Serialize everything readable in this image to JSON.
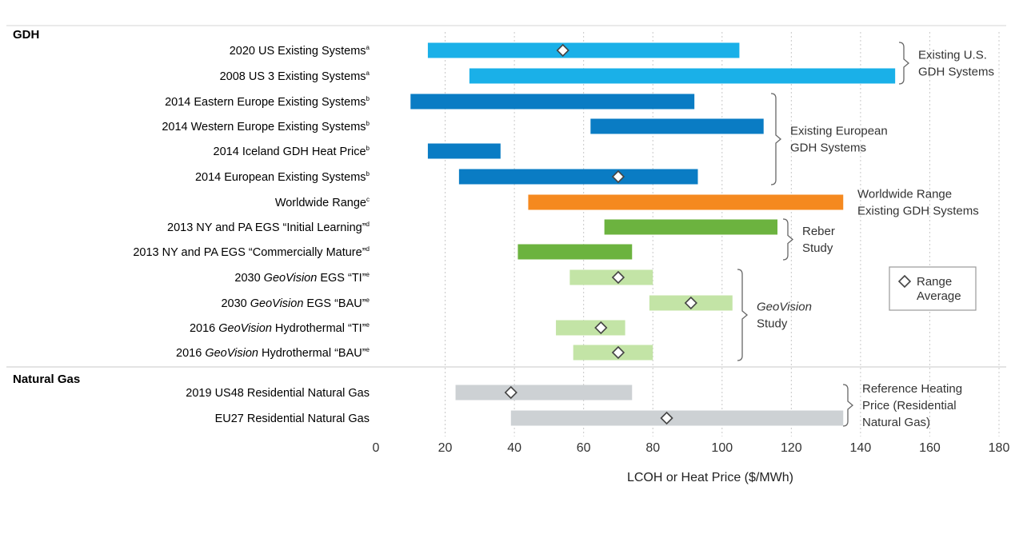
{
  "chart_data": {
    "type": "bar",
    "orientation": "horizontal-range",
    "title": "",
    "xlabel": "LCOH or Heat Price ($/MWh)",
    "xlim": [
      0,
      180
    ],
    "xticks": [
      0,
      20,
      40,
      60,
      80,
      100,
      120,
      140,
      160,
      180
    ],
    "sections": [
      {
        "id": "gdh",
        "title": "GDH"
      },
      {
        "id": "ng",
        "title": "Natural Gas"
      }
    ],
    "rows": [
      {
        "label": "2020 US Existing Systems",
        "sup": "a",
        "low": 15,
        "high": 105,
        "avg": 54,
        "color": "#1ab0e8",
        "section": "gdh"
      },
      {
        "label": "2008 US 3 Existing Systems",
        "sup": "a",
        "low": 27,
        "high": 150,
        "avg": null,
        "color": "#1ab0e8",
        "section": "gdh"
      },
      {
        "label": "2014 Eastern Europe Existing Systems",
        "sup": "b",
        "low": 10,
        "high": 92,
        "avg": null,
        "color": "#0a7cc4",
        "section": "gdh"
      },
      {
        "label": "2014 Western Europe Existing Systems",
        "sup": "b",
        "low": 62,
        "high": 112,
        "avg": null,
        "color": "#0a7cc4",
        "section": "gdh"
      },
      {
        "label": "2014 Iceland GDH Heat Price",
        "sup": "b",
        "low": 15,
        "high": 36,
        "avg": null,
        "color": "#0a7cc4",
        "section": "gdh"
      },
      {
        "label": "2014 European Existing Systems",
        "sup": "b",
        "low": 24,
        "high": 93,
        "avg": 70,
        "color": "#0a7cc4",
        "section": "gdh"
      },
      {
        "label": "Worldwide Range",
        "sup": "c",
        "low": 44,
        "high": 135,
        "avg": null,
        "color": "#f5891f",
        "section": "gdh"
      },
      {
        "label": "2013 NY and PA EGS “Initial Learning”",
        "sup": "d",
        "low": 66,
        "high": 116,
        "avg": null,
        "color": "#6cb33f",
        "section": "gdh"
      },
      {
        "label": "2013 NY and PA EGS “Commercially Mature”",
        "sup": "d",
        "low": 41,
        "high": 74,
        "avg": null,
        "color": "#6cb33f",
        "section": "gdh"
      },
      {
        "label_pre": "2030 ",
        "label_em": "GeoVision",
        "label_post": " EGS “TI”",
        "sup": "e",
        "low": 56,
        "high": 80,
        "avg": 70,
        "color": "#c3e4a6",
        "section": "gdh"
      },
      {
        "label_pre": "2030 ",
        "label_em": "GeoVision",
        "label_post": " EGS “BAU”",
        "sup": "e",
        "low": 79,
        "high": 103,
        "avg": 91,
        "color": "#c3e4a6",
        "section": "gdh"
      },
      {
        "label_pre": "2016 ",
        "label_em": "GeoVision",
        "label_post": " Hydrothermal “TI”",
        "sup": "e",
        "low": 52,
        "high": 72,
        "avg": 65,
        "color": "#c3e4a6",
        "section": "gdh"
      },
      {
        "label_pre": "2016 ",
        "label_em": "GeoVision",
        "label_post": " Hydrothermal “BAU”",
        "sup": "e",
        "low": 57,
        "high": 80,
        "avg": 70,
        "color": "#c3e4a6",
        "section": "gdh"
      },
      {
        "label": "2019 US48 Residential Natural Gas",
        "sup": "",
        "low": 23,
        "high": 74,
        "avg": 39,
        "color": "#cdd1d4",
        "section": "ng"
      },
      {
        "label": "EU27 Residential Natural Gas",
        "sup": "",
        "low": 39,
        "high": 135,
        "avg": 84,
        "color": "#cdd1d4",
        "section": "ng"
      }
    ],
    "groups": [
      {
        "lines": [
          "Existing U.S.",
          "GDH Systems"
        ],
        "first_row": 0,
        "last_row": 1,
        "bracket": true
      },
      {
        "lines": [
          "Existing European",
          "GDH Systems"
        ],
        "first_row": 2,
        "last_row": 5,
        "bracket": true
      },
      {
        "lines": [
          "Worldwide Range",
          "Existing GDH Systems"
        ],
        "first_row": 6,
        "last_row": 6,
        "bracket": false
      },
      {
        "lines": [
          "Reber",
          "Study"
        ],
        "first_row": 7,
        "last_row": 8,
        "bracket": true
      },
      {
        "lines_em": [
          "GeoVision",
          ""
        ],
        "lines": [
          "",
          "Study"
        ],
        "first_row": 9,
        "last_row": 12,
        "bracket": true
      },
      {
        "lines": [
          "Reference Heating",
          "Price (Residential",
          "Natural Gas)"
        ],
        "first_row": 13,
        "last_row": 14,
        "bracket": true
      }
    ],
    "legend": {
      "label_lines": [
        "Range",
        "Average"
      ],
      "position": "right"
    }
  }
}
